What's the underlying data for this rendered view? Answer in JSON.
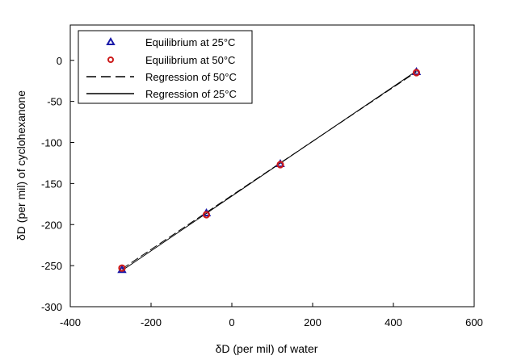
{
  "chart_data": {
    "type": "scatter",
    "title": "",
    "xlabel": "δD (per mil) of water",
    "ylabel": "δD (per mil) of cyclohexanone",
    "xlim": [
      -400,
      600
    ],
    "ylim": [
      -300,
      43
    ],
    "xticks": [
      -400,
      -200,
      0,
      200,
      400,
      600
    ],
    "yticks": [
      0,
      -50,
      -100,
      -150,
      -200,
      -250,
      -300
    ],
    "xtick_labels": [
      "-400",
      "-200",
      "0",
      "200",
      "400",
      "600"
    ],
    "ytick_labels": [
      "0",
      "-50",
      "-100",
      "-150",
      "-200",
      "-250",
      "-300"
    ],
    "grid": false,
    "legend_position": "top-left",
    "series": [
      {
        "name": "Equilibrium at 25°C",
        "kind": "points",
        "marker": "triangle-open",
        "color": "#1a1aa8",
        "x": [
          -272,
          -63,
          120,
          457
        ],
        "y": [
          -255,
          -186,
          -126,
          -14
        ]
      },
      {
        "name": "Equilibrium at 50°C",
        "kind": "points",
        "marker": "circle-open",
        "color": "#cc1a1a",
        "x": [
          -272,
          -63,
          120,
          457
        ],
        "y": [
          -253,
          -188,
          -127,
          -15
        ]
      },
      {
        "name": "Regression of 50°C",
        "kind": "line",
        "style": "dashed",
        "color": "#000000",
        "x": [
          -272,
          457
        ],
        "y": [
          -254,
          -14
        ]
      },
      {
        "name": "Regression of 25°C",
        "kind": "line",
        "style": "solid",
        "color": "#000000",
        "x": [
          -272,
          457
        ],
        "y": [
          -256,
          -13
        ]
      }
    ]
  }
}
